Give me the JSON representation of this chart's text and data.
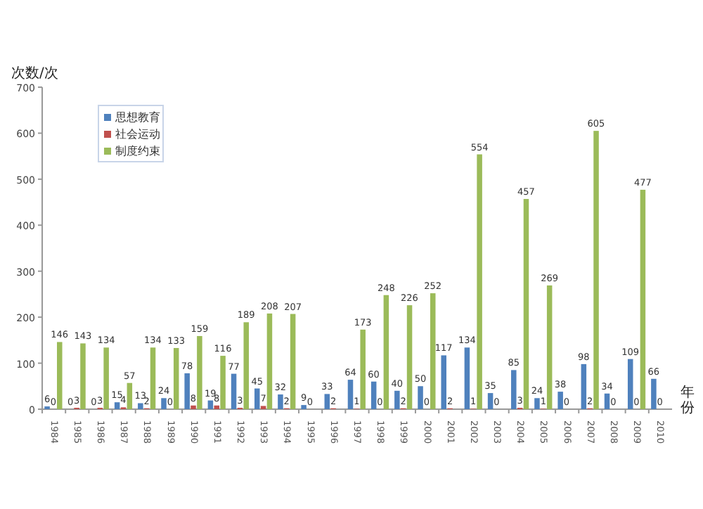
{
  "chart_data": {
    "type": "bar",
    "ylabel": "次数/次",
    "xlabel": "年份",
    "categories": [
      "1984",
      "1985",
      "1986",
      "1987",
      "1988",
      "1989",
      "1990",
      "1991",
      "1992",
      "1993",
      "1994",
      "1995",
      "1996",
      "1997",
      "1998",
      "1999",
      "2000",
      "2001",
      "2002",
      "2003",
      "2004",
      "2005",
      "2006",
      "2007",
      "2008",
      "2009",
      "2010"
    ],
    "series": [
      {
        "name": "思想教育",
        "color": "#4f81bd",
        "values": [
          6,
          0,
          0,
          15,
          13,
          24,
          78,
          19,
          77,
          45,
          32,
          9,
          33,
          64,
          60,
          40,
          50,
          117,
          134,
          35,
          85,
          24,
          38,
          98,
          34,
          109,
          66
        ]
      },
      {
        "name": "社会运动",
        "color": "#c0504d",
        "values": [
          0,
          3,
          3,
          4,
          2,
          0,
          8,
          8,
          3,
          7,
          2,
          0,
          2,
          1,
          0,
          2,
          0,
          2,
          1,
          0,
          3,
          1,
          0,
          2,
          0,
          0,
          0
        ]
      },
      {
        "name": "制度约束",
        "color": "#9bbb59",
        "values": [
          146,
          143,
          134,
          57,
          134,
          133,
          159,
          116,
          189,
          208,
          207,
          null,
          null,
          173,
          248,
          226,
          252,
          null,
          554,
          null,
          457,
          269,
          null,
          605,
          null,
          477,
          null
        ]
      }
    ],
    "ylim": [
      0,
      700
    ],
    "yticks": [
      0,
      100,
      200,
      300,
      400,
      500,
      600,
      700
    ],
    "data_labels": true,
    "legend": "top left",
    "grid": false
  }
}
